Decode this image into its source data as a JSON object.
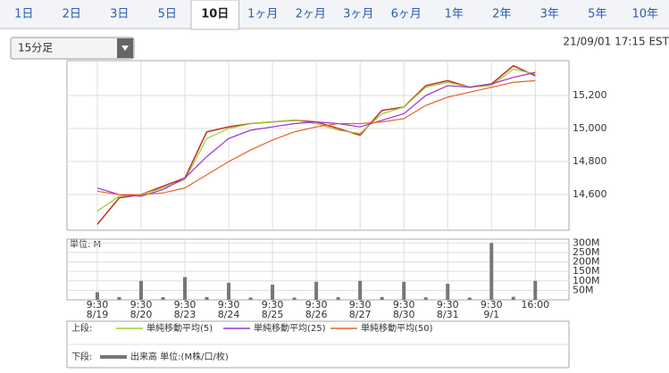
{
  "tabs": [
    "1日",
    "2日",
    "3日",
    "5日",
    "10日",
    "1ヶ月",
    "2ヶ月",
    "3ヶ月",
    "6ヶ月",
    "1年",
    "2年",
    "3年",
    "5年",
    "10年"
  ],
  "selected_tab": 4,
  "interval": "15分足",
  "timestamp": "21/09/01 17:15 EST",
  "chart_data": [
    {
      "type": "line",
      "x": [
        0,
        13,
        26,
        39,
        52,
        65,
        78,
        91,
        104,
        117,
        130,
        143,
        156,
        169,
        182,
        195,
        208,
        221,
        234,
        247,
        260
      ],
      "price": {
        "color": "#c0392b",
        "values": [
          14420,
          14580,
          14600,
          14650,
          14700,
          14980,
          15010,
          15030,
          15040,
          15050,
          15040,
          15000,
          14960,
          15110,
          15130,
          15260,
          15290,
          15250,
          15270,
          15380,
          15320
        ]
      },
      "series": [
        {
          "name": "単純移動平均(5)",
          "color": "#9acd32",
          "values": [
            14500,
            14590,
            14600,
            14640,
            14690,
            14940,
            15000,
            15030,
            15040,
            15050,
            15030,
            14990,
            14970,
            15090,
            15130,
            15250,
            15280,
            15250,
            15260,
            15360,
            15330
          ]
        },
        {
          "name": "単純移動平均(25)",
          "color": "#9b30d9",
          "values": [
            14640,
            14600,
            14590,
            14630,
            14700,
            14830,
            14940,
            14990,
            15010,
            15030,
            15040,
            15030,
            15010,
            15050,
            15090,
            15200,
            15260,
            15250,
            15270,
            15310,
            15340
          ]
        },
        {
          "name": "単純移動平均(50)",
          "color": "#e8622a",
          "values": [
            14620,
            14600,
            14600,
            14610,
            14640,
            14720,
            14800,
            14870,
            14930,
            14980,
            15010,
            15030,
            15030,
            15040,
            15060,
            15140,
            15190,
            15220,
            15250,
            15280,
            15290
          ]
        }
      ],
      "xlim": [
        -18,
        280
      ],
      "xticks": [
        {
          "value": 0,
          "label": "9:30",
          "date": "8/19"
        },
        {
          "value": 26,
          "label": "9:30",
          "date": "8/20"
        },
        {
          "value": 52,
          "label": "9:30",
          "date": "8/23"
        },
        {
          "value": 78,
          "label": "9:30",
          "date": "8/24"
        },
        {
          "value": 104,
          "label": "9:30",
          "date": "8/25"
        },
        {
          "value": 130,
          "label": "9:30",
          "date": "8/26"
        },
        {
          "value": 156,
          "label": "9:30",
          "date": "8/27"
        },
        {
          "value": 182,
          "label": "9:30",
          "date": "8/30"
        },
        {
          "value": 208,
          "label": "9:30",
          "date": "8/31"
        },
        {
          "value": 234,
          "label": "9:30",
          "date": "9/1"
        },
        {
          "value": 260,
          "label": "16:00"
        }
      ],
      "ylim": [
        14384,
        15411
      ],
      "yticks": [
        {
          "value": 14600,
          "label": "14,600"
        },
        {
          "value": 14800,
          "label": "14,800"
        },
        {
          "value": 15000,
          "label": "15,000"
        },
        {
          "value": 15200,
          "label": "15,200"
        }
      ],
      "grid": true,
      "legend_prefix": "上段:"
    },
    {
      "type": "bar",
      "unit_label": "単位: M",
      "name": "出来高 単位:(M株/口/枚)",
      "color": "#777777",
      "legend_prefix": "下段:",
      "x": [
        0,
        13,
        26,
        39,
        52,
        65,
        78,
        91,
        104,
        117,
        130,
        143,
        156,
        169,
        182,
        195,
        208,
        221,
        234,
        247,
        260
      ],
      "values": [
        40,
        15,
        100,
        14,
        120,
        15,
        90,
        12,
        80,
        12,
        95,
        14,
        100,
        15,
        95,
        13,
        85,
        12,
        300,
        16,
        100
      ],
      "xlim": [
        -18,
        280
      ],
      "ylim": [
        0,
        320
      ],
      "yticks": [
        {
          "value": 50,
          "label": "50M"
        },
        {
          "value": 100,
          "label": "100M"
        },
        {
          "value": 150,
          "label": "150M"
        },
        {
          "value": 200,
          "label": "200M"
        },
        {
          "value": 250,
          "label": "250M"
        },
        {
          "value": 300,
          "label": "300M"
        }
      ],
      "grid": true
    }
  ]
}
